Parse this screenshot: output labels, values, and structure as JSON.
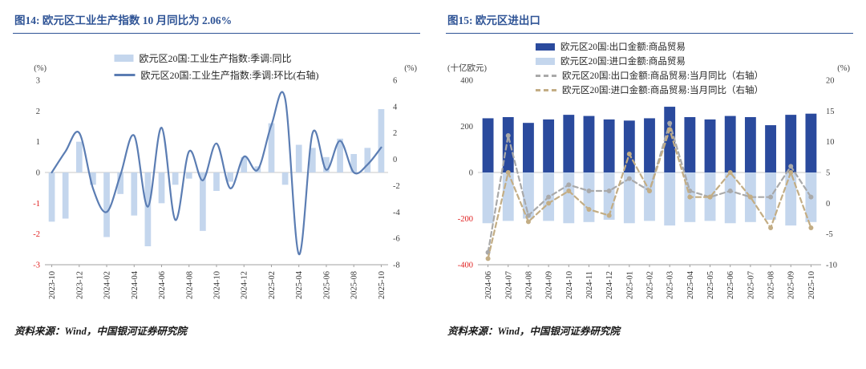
{
  "panels": [
    {
      "title": "图14: 欧元区工业生产指数 10 月同比为 2.06%",
      "source": "资料来源：Wind，中国银河证券研究院"
    },
    {
      "title": "图15: 欧元区进出口",
      "source": "资料来源：Wind，中国银河证券研究院"
    }
  ],
  "theme": {
    "title_color": "#2F5496",
    "axis_text_color": "#404040",
    "negative_tick_color": "#E02020",
    "zero_line_color": "#C8C8C8",
    "axis_line_color": "#A0A0A0",
    "bar_light_blue": "#C4D6ED",
    "line_blue": "#5B7DB3",
    "bar_dark_blue": "#2A4A9D",
    "line_gray": "#A9A9A9",
    "line_tan": "#C3AD84"
  },
  "chart_data": [
    {
      "type": "bar",
      "subtype": "combo-bar-line",
      "title": "欧元区工业生产指数",
      "categories": [
        "2023-10",
        "2023-11",
        "2023-12",
        "2024-01",
        "2024-02",
        "2024-03",
        "2024-04",
        "2024-05",
        "2024-06",
        "2024-07",
        "2024-08",
        "2024-09",
        "2024-10",
        "2024-11",
        "2024-12",
        "2025-01",
        "2025-02",
        "2025-03",
        "2025-04",
        "2025-05",
        "2025-06",
        "2025-07",
        "2025-08",
        "2025-09",
        "2025-10"
      ],
      "x_tick_step": 2,
      "bar_width_frac": 0.45,
      "left_axis": {
        "label": "(%)",
        "min": -3,
        "max": 3,
        "ticks": [
          3,
          2,
          1,
          0,
          -1,
          -2,
          -3
        ]
      },
      "right_axis": {
        "label": "(%)",
        "min": -8,
        "max": 6,
        "ticks": [
          6,
          4,
          2,
          0,
          -2,
          -4,
          -6,
          -8
        ]
      },
      "series": [
        {
          "name": "欧元区20国:工业生产指数:季调:同比",
          "type": "bar",
          "axis": "left",
          "color": "#C4D6ED",
          "values": [
            -1.6,
            -1.5,
            1.0,
            -0.4,
            -2.1,
            -0.7,
            -1.4,
            -2.4,
            -1.0,
            -0.4,
            -0.2,
            -1.9,
            -0.6,
            -0.3,
            0.5,
            0.2,
            1.6,
            -0.4,
            0.9,
            0.8,
            0.5,
            1.1,
            0.6,
            0.8,
            2.06
          ]
        },
        {
          "name": "欧元区20国:工业生产指数:季调:环比(右轴)",
          "type": "line",
          "axis": "right",
          "color": "#5B7DB3",
          "smooth": true,
          "values": [
            -1.0,
            0.6,
            2.0,
            -2.2,
            -4.0,
            -1.2,
            1.8,
            -3.6,
            2.4,
            -4.6,
            0.6,
            -1.6,
            1.2,
            -2.2,
            0.2,
            -0.8,
            2.6,
            4.6,
            -7.2,
            2.0,
            -0.8,
            1.4,
            -1.0,
            -0.4,
            0.9
          ]
        }
      ]
    },
    {
      "type": "bar",
      "subtype": "combo-bar-line",
      "title": "欧元区进出口",
      "categories": [
        "2024-06",
        "2024-07",
        "2024-08",
        "2024-09",
        "2024-10",
        "2024-11",
        "2024-12",
        "2025-01",
        "2025-02",
        "2025-03",
        "2025-04",
        "2025-05",
        "2025-06",
        "2025-07",
        "2025-08",
        "2025-09",
        "2025-10"
      ],
      "x_tick_step": 1,
      "bar_width_frac": 0.55,
      "left_axis": {
        "label": "(十亿欧元)",
        "min": -400,
        "max": 400,
        "ticks": [
          400,
          200,
          0,
          -200,
          -400
        ]
      },
      "right_axis": {
        "label": "(%)",
        "min": -10,
        "max": 20,
        "ticks": [
          20,
          15,
          10,
          5,
          0,
          -5,
          -10
        ]
      },
      "series": [
        {
          "name": "欧元区20国:出口金额:商品贸易",
          "type": "bar",
          "axis": "left",
          "color": "#2A4A9D",
          "values": [
            235,
            240,
            215,
            230,
            250,
            245,
            230,
            225,
            235,
            285,
            240,
            230,
            245,
            240,
            205,
            250,
            255
          ]
        },
        {
          "name": "欧元区20国:进口金额:商品贸易",
          "type": "bar",
          "axis": "left",
          "color": "#C4D6ED",
          "values": [
            -220,
            -210,
            -200,
            -210,
            -220,
            -215,
            -205,
            -220,
            -210,
            -230,
            -215,
            -210,
            -220,
            -215,
            -205,
            -230,
            -215
          ]
        },
        {
          "name": "欧元区20国:出口金额:商品贸易:当月同比（右轴）",
          "type": "line",
          "axis": "right",
          "color": "#A9A9A9",
          "dash": true,
          "marker": true,
          "values": [
            -8,
            11,
            -2,
            1,
            3,
            2,
            2,
            4,
            2,
            13,
            2,
            1,
            2,
            1,
            1,
            6,
            1
          ]
        },
        {
          "name": "欧元区20国:进口金额:商品贸易:当月同比（右轴）",
          "type": "line",
          "axis": "right",
          "color": "#C3AD84",
          "dash": true,
          "marker": true,
          "values": [
            -9,
            5,
            -3,
            0,
            2,
            -1,
            -2,
            8,
            2,
            12,
            1,
            1,
            5,
            1,
            -4,
            5,
            -4
          ]
        }
      ]
    }
  ]
}
